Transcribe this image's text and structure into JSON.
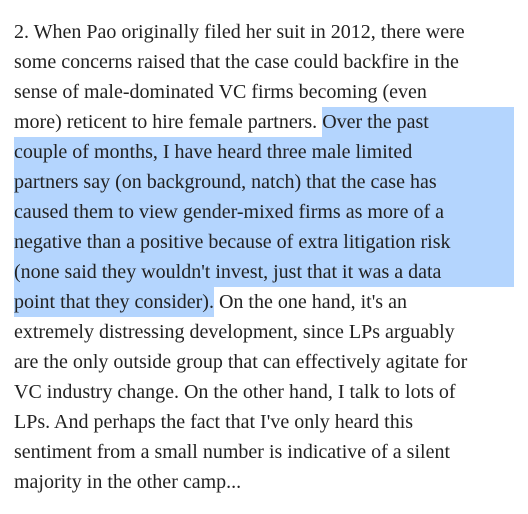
{
  "paragraph": {
    "lines": [
      [
        {
          "text": "2. When Pao originally filed her suit in 2012, there were",
          "highlight": false
        }
      ],
      [
        {
          "text": "some concerns raised that the case could backfire in the",
          "highlight": false
        }
      ],
      [
        {
          "text": "sense of male-dominated VC firms becoming (even",
          "highlight": false
        }
      ],
      [
        {
          "text": "more) reticent to hire female partners.",
          "highlight": false
        },
        {
          "text": "Over the past",
          "highlight": true
        }
      ],
      [
        {
          "text": "couple of months, I have heard three male limited",
          "highlight": true
        }
      ],
      [
        {
          "text": "partners say (on background, natch) that the case has",
          "highlight": true
        }
      ],
      [
        {
          "text": "caused them to view gender-mixed firms as more of a",
          "highlight": true
        }
      ],
      [
        {
          "text": "negative than a positive because of extra litigation risk",
          "highlight": true
        }
      ],
      [
        {
          "text": "(none said they wouldn't invest, just that it was a data",
          "highlight": true
        }
      ],
      [
        {
          "text": "point that they consider).",
          "highlight": true
        },
        {
          "text": "On the one hand, it's an",
          "highlight": false
        }
      ],
      [
        {
          "text": "extremely distressing development, since LPs arguably",
          "highlight": false
        }
      ],
      [
        {
          "text": "are the only outside group that can effectively agitate for",
          "highlight": false
        }
      ],
      [
        {
          "text": "VC industry change. On the other hand, I talk to lots of",
          "highlight": false
        }
      ],
      [
        {
          "text": "LPs. And perhaps the fact that I've only heard this",
          "highlight": false
        }
      ],
      [
        {
          "text": "sentiment from a small number is indicative of a silent",
          "highlight": false
        }
      ],
      [
        {
          "text": "majority in the other camp...",
          "highlight": false
        }
      ]
    ]
  }
}
